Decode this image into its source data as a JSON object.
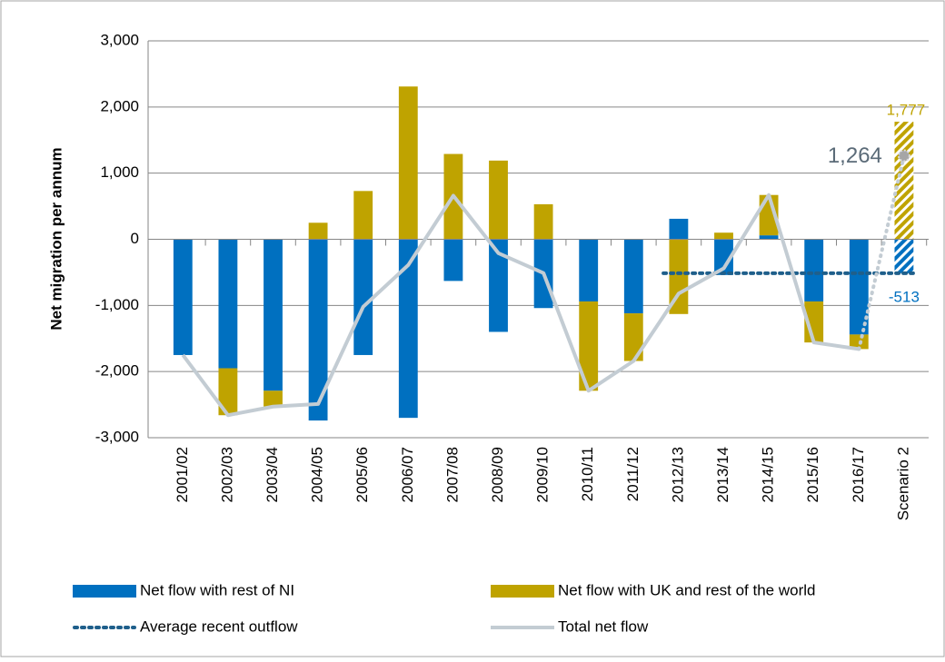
{
  "chart_data": {
    "type": "stacked_bar_line",
    "y_axis_label": "Net migration per annum",
    "categories": [
      "2001/02",
      "2002/03",
      "2003/04",
      "2004/05",
      "2005/06",
      "2006/07",
      "2007/08",
      "2008/09",
      "2009/10",
      "2010/11",
      "2011/12",
      "2012/13",
      "2013/14",
      "2014/15",
      "2015/16",
      "2016/17",
      "Scenario 2"
    ],
    "hatched_category": "Scenario 2",
    "series": [
      {
        "name": "Net flow with rest of NI",
        "kind": "bar",
        "color": "#0070c0",
        "values": [
          -1750,
          -1950,
          -2290,
          -2740,
          -1750,
          -2700,
          -630,
          -1400,
          -1040,
          -940,
          -1120,
          310,
          -540,
          60,
          -940,
          -1440,
          -513
        ]
      },
      {
        "name": "Net flow with UK and rest of the world",
        "kind": "bar",
        "color": "#bfa300",
        "values": [
          0,
          -710,
          -240,
          250,
          730,
          2310,
          1290,
          1190,
          530,
          -1350,
          -720,
          -1130,
          100,
          610,
          -620,
          -220,
          1777
        ],
        "value_labels": [
          null,
          null,
          null,
          null,
          null,
          null,
          null,
          null,
          null,
          null,
          null,
          null,
          null,
          null,
          null,
          null,
          "1,777"
        ]
      },
      {
        "name": "Average recent outflow",
        "kind": "dotted_line",
        "color": "#1f5f8b",
        "values": [
          null,
          null,
          null,
          null,
          null,
          null,
          null,
          null,
          null,
          null,
          null,
          -513,
          -513,
          -513,
          -513,
          -513,
          -513
        ]
      },
      {
        "name": "Total net flow",
        "kind": "line",
        "color": "#c3ccd3",
        "values": [
          -1750,
          -2660,
          -2530,
          -2490,
          -1020,
          -390,
          660,
          -210,
          -510,
          -2290,
          -1840,
          -820,
          -440,
          670,
          -1560,
          -1660,
          1264
        ],
        "value_labels": [
          null,
          null,
          null,
          null,
          null,
          null,
          null,
          null,
          null,
          null,
          null,
          null,
          null,
          null,
          null,
          null,
          "1,264"
        ]
      }
    ],
    "ylim": [
      -3000,
      3000
    ],
    "yticks": [
      {
        "value": -3000,
        "label": "-3,000"
      },
      {
        "value": -2000,
        "label": "-2,000"
      },
      {
        "value": -1000,
        "label": "-1,000"
      },
      0,
      {
        "value": 1000,
        "label": "1,000"
      },
      {
        "value": 2000,
        "label": "2,000"
      },
      {
        "value": 3000,
        "label": "3,000"
      }
    ],
    "grid": true
  }
}
